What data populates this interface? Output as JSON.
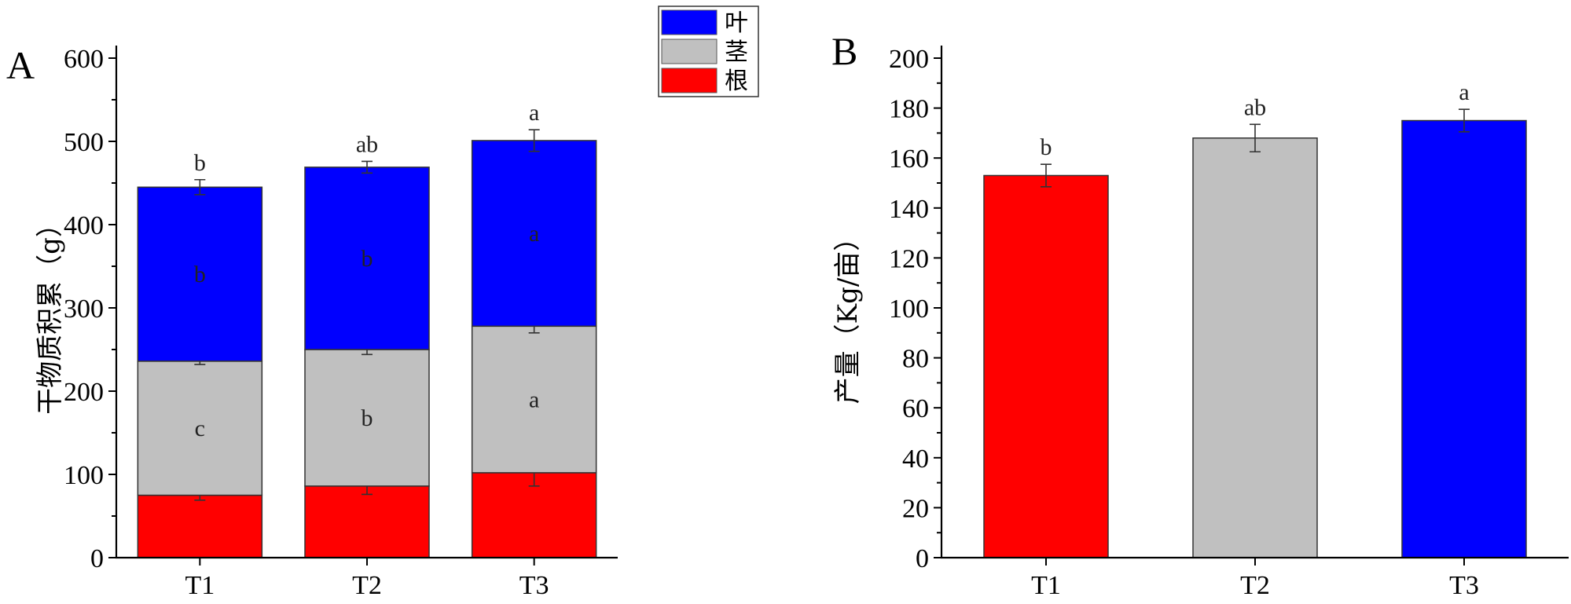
{
  "chart_data": [
    {
      "panel": "A",
      "type": "bar",
      "stacked": true,
      "ylabel": "干物质积累（g）",
      "ylim": [
        0,
        600
      ],
      "ytick_step": 100,
      "yticks": [
        "0",
        "100",
        "200",
        "300",
        "400",
        "500",
        "600"
      ],
      "categories": [
        "T1",
        "T2",
        "T3"
      ],
      "legend_position": "top-right",
      "series": [
        {
          "name": "根",
          "color": "#ff0000",
          "values": [
            75,
            86,
            102
          ],
          "errors": [
            6,
            10,
            16
          ],
          "sig": [
            "",
            "",
            ""
          ]
        },
        {
          "name": "茎",
          "color": "#c0c0c0",
          "values": [
            161,
            164,
            176
          ],
          "errors": [
            4,
            6,
            8
          ],
          "sig": [
            "c",
            "b",
            "a"
          ]
        },
        {
          "name": "叶",
          "color": "#0000ff",
          "values": [
            209,
            219,
            223
          ],
          "errors": [
            9,
            7,
            13
          ],
          "sig": [
            "b",
            "b",
            "a"
          ]
        }
      ],
      "top_sig": [
        "b",
        "ab",
        "a"
      ],
      "legend": [
        {
          "name": "叶",
          "color": "#0000ff"
        },
        {
          "name": "茎",
          "color": "#c0c0c0"
        },
        {
          "name": "根",
          "color": "#ff0000"
        }
      ]
    },
    {
      "panel": "B",
      "type": "bar",
      "ylabel": "产量（Kg/亩）",
      "ylim": [
        0,
        200
      ],
      "ytick_step": 20,
      "yticks": [
        "0",
        "20",
        "40",
        "60",
        "80",
        "100",
        "120",
        "140",
        "160",
        "180",
        "200"
      ],
      "categories": [
        "T1",
        "T2",
        "T3"
      ],
      "values": [
        153,
        168,
        175
      ],
      "errors": [
        4.5,
        5.5,
        4.5
      ],
      "colors": [
        "#ff0000",
        "#c0c0c0",
        "#0000ff"
      ],
      "sig": [
        "b",
        "ab",
        "a"
      ]
    }
  ]
}
